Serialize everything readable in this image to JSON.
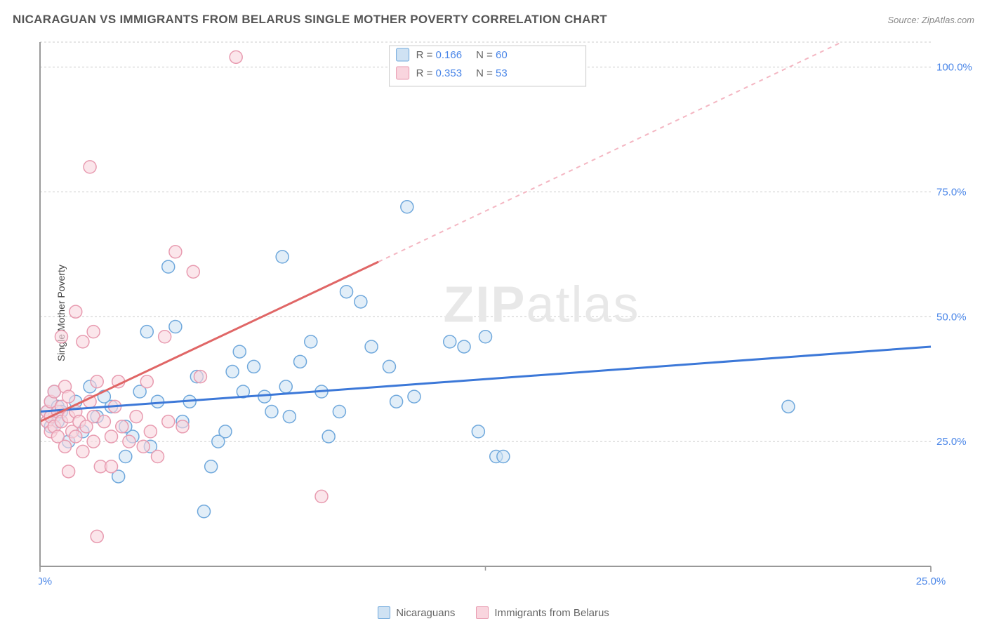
{
  "title": "NICARAGUAN VS IMMIGRANTS FROM BELARUS SINGLE MOTHER POVERTY CORRELATION CHART",
  "source": "Source: ZipAtlas.com",
  "watermark_main": "ZIP",
  "watermark_sub": "atlas",
  "y_axis_label": "Single Mother Poverty",
  "chart": {
    "type": "scatter",
    "xlim": [
      0,
      25
    ],
    "ylim": [
      0,
      105
    ],
    "x_ticks": [
      0,
      25
    ],
    "x_tick_labels": [
      "0.0%",
      "25.0%"
    ],
    "y_ticks": [
      25,
      50,
      75,
      100
    ],
    "y_tick_labels": [
      "25.0%",
      "50.0%",
      "75.0%",
      "100.0%"
    ],
    "grid_color": "#cccccc",
    "background": "#ffffff",
    "axis_color": "#999999",
    "tick_label_color": "#4a86e8",
    "marker_radius": 9,
    "marker_stroke_width": 1.5,
    "marker_fill_opacity": 0.25,
    "series": [
      {
        "name": "Nicaraguans",
        "stroke": "#6fa8dc",
        "fill": "#cfe2f3",
        "trend_color": "#3c78d8",
        "trend_width": 3,
        "trend_dash_color": "#a4c2f4",
        "R": "0.166",
        "N": "60",
        "trend": {
          "x1": 0,
          "y1": 31,
          "x2": 25,
          "y2": 44
        },
        "points": [
          [
            0.2,
            31
          ],
          [
            0.3,
            28
          ],
          [
            0.3,
            33
          ],
          [
            0.4,
            30
          ],
          [
            0.4,
            35
          ],
          [
            0.5,
            29
          ],
          [
            0.5,
            32
          ],
          [
            0.6,
            31
          ],
          [
            21.0,
            32
          ],
          [
            10.0,
            33
          ],
          [
            10.5,
            34
          ],
          [
            12.8,
            22
          ],
          [
            13.0,
            22
          ],
          [
            12.3,
            27
          ],
          [
            11.9,
            44
          ],
          [
            12.5,
            46
          ],
          [
            9.8,
            40
          ],
          [
            9.0,
            53
          ],
          [
            10.3,
            72
          ],
          [
            7.3,
            41
          ],
          [
            7.9,
            35
          ],
          [
            8.4,
            31
          ],
          [
            8.1,
            26
          ],
          [
            7.6,
            45
          ],
          [
            6.9,
            36
          ],
          [
            6.3,
            34
          ],
          [
            6.5,
            31
          ],
          [
            6.0,
            40
          ],
          [
            5.6,
            43
          ],
          [
            5.7,
            35
          ],
          [
            5.2,
            27
          ],
          [
            5.0,
            25
          ],
          [
            4.8,
            20
          ],
          [
            4.4,
            38
          ],
          [
            4.2,
            33
          ],
          [
            4.0,
            29
          ],
          [
            3.8,
            48
          ],
          [
            3.6,
            60
          ],
          [
            3.3,
            33
          ],
          [
            3.0,
            47
          ],
          [
            2.8,
            35
          ],
          [
            2.6,
            26
          ],
          [
            2.4,
            28
          ],
          [
            2.2,
            18
          ],
          [
            2.0,
            32
          ],
          [
            1.8,
            34
          ],
          [
            1.6,
            30
          ],
          [
            1.4,
            36
          ],
          [
            1.2,
            27
          ],
          [
            1.0,
            33
          ],
          [
            6.8,
            62
          ],
          [
            8.6,
            55
          ],
          [
            7.0,
            30
          ],
          [
            5.4,
            39
          ],
          [
            4.6,
            11
          ],
          [
            11.5,
            45
          ],
          [
            9.3,
            44
          ],
          [
            3.1,
            24
          ],
          [
            2.4,
            22
          ],
          [
            0.8,
            25
          ]
        ]
      },
      {
        "name": "Immigrants from Belarus",
        "stroke": "#e89bb0",
        "fill": "#f9d5de",
        "trend_color": "#e06666",
        "trend_width": 3,
        "trend_dash_color": "#f4b6c2",
        "R": "0.353",
        "N": "53",
        "trend": {
          "x1": 0,
          "y1": 29,
          "x2": 9.5,
          "y2": 61
        },
        "trend_dash": {
          "x1": 9.5,
          "y1": 61,
          "x2": 22.5,
          "y2": 105
        },
        "points": [
          [
            0.2,
            29
          ],
          [
            0.2,
            31
          ],
          [
            0.3,
            27
          ],
          [
            0.3,
            33
          ],
          [
            0.3,
            30
          ],
          [
            0.4,
            35
          ],
          [
            0.4,
            28
          ],
          [
            0.5,
            31
          ],
          [
            0.5,
            26
          ],
          [
            0.6,
            29
          ],
          [
            0.6,
            32
          ],
          [
            0.7,
            36
          ],
          [
            0.7,
            24
          ],
          [
            0.8,
            30
          ],
          [
            0.8,
            34
          ],
          [
            0.9,
            27
          ],
          [
            1.0,
            31
          ],
          [
            1.0,
            26
          ],
          [
            1.1,
            29
          ],
          [
            1.2,
            23
          ],
          [
            1.3,
            28
          ],
          [
            1.4,
            33
          ],
          [
            1.5,
            25
          ],
          [
            1.5,
            30
          ],
          [
            1.6,
            37
          ],
          [
            1.7,
            20
          ],
          [
            1.8,
            29
          ],
          [
            2.0,
            26
          ],
          [
            2.1,
            32
          ],
          [
            2.3,
            28
          ],
          [
            2.5,
            25
          ],
          [
            2.7,
            30
          ],
          [
            2.9,
            24
          ],
          [
            3.1,
            27
          ],
          [
            3.3,
            22
          ],
          [
            3.6,
            29
          ],
          [
            1.0,
            51
          ],
          [
            1.2,
            45
          ],
          [
            1.5,
            47
          ],
          [
            0.6,
            46
          ],
          [
            0.8,
            19
          ],
          [
            2.0,
            20
          ],
          [
            2.2,
            37
          ],
          [
            3.0,
            37
          ],
          [
            3.8,
            63
          ],
          [
            4.3,
            59
          ],
          [
            3.5,
            46
          ],
          [
            4.5,
            38
          ],
          [
            4.0,
            28
          ],
          [
            1.6,
            6
          ],
          [
            5.5,
            102
          ],
          [
            1.4,
            80
          ],
          [
            7.9,
            14
          ]
        ]
      }
    ]
  },
  "top_legend": {
    "rows": [
      {
        "r_label": "R  =",
        "r_val": "0.166",
        "n_label": "N  =",
        "n_val": "60",
        "swatch_fill": "#cfe2f3",
        "swatch_stroke": "#6fa8dc"
      },
      {
        "r_label": "R  =",
        "r_val": "0.353",
        "n_label": "N  =",
        "n_val": "53",
        "swatch_fill": "#f9d5de",
        "swatch_stroke": "#e89bb0"
      }
    ]
  },
  "bottom_legend": [
    {
      "label": "Nicaraguans",
      "fill": "#cfe2f3",
      "stroke": "#6fa8dc"
    },
    {
      "label": "Immigrants from Belarus",
      "fill": "#f9d5de",
      "stroke": "#e89bb0"
    }
  ]
}
